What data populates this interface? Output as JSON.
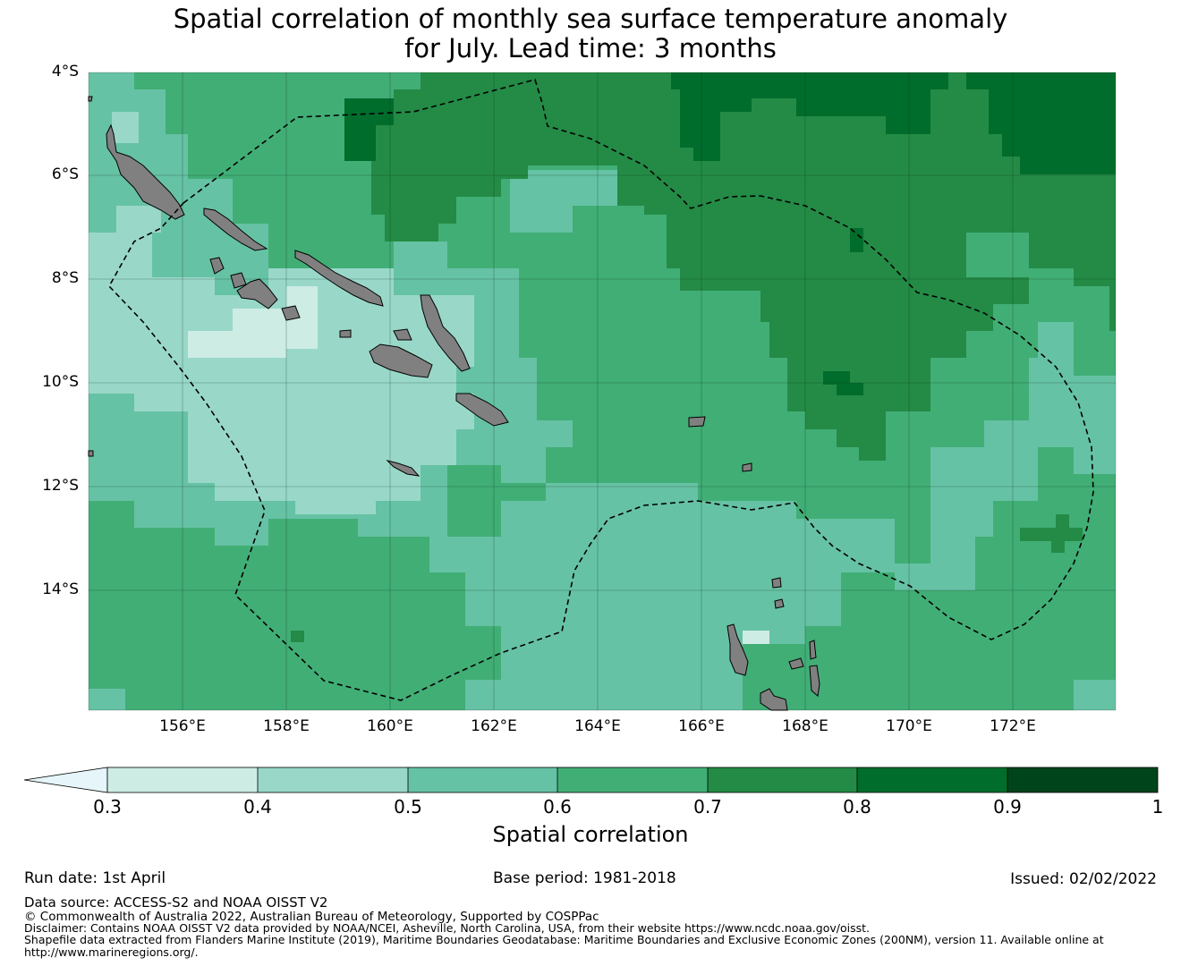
{
  "title_line1": "Spatial correlation of monthly sea surface temperature anomaly",
  "title_line2": "for July. Lead time: 3 months",
  "map": {
    "lon_range": [
      154.2,
      174.0
    ],
    "lat_range": [
      -4.0,
      -16.3
    ],
    "lat_ticks": [
      "4°S",
      "6°S",
      "8°S",
      "10°S",
      "12°S",
      "14°S"
    ],
    "lon_ticks": [
      "156°E",
      "158°E",
      "160°E",
      "162°E",
      "164°E",
      "166°E",
      "168°E",
      "170°E",
      "172°E"
    ],
    "land_color": "#808080",
    "eez_boundary_style": "dashed black"
  },
  "colorbar": {
    "title": "Spatial correlation",
    "ticks": [
      "0.3",
      "0.4",
      "0.5",
      "0.6",
      "0.7",
      "0.8",
      "0.9",
      "1"
    ],
    "colors": [
      "#cdece4",
      "#99d8c9",
      "#66c2a4",
      "#41ae76",
      "#238b45",
      "#006d2c",
      "#00441b"
    ],
    "under_color": "#e5f5f9"
  },
  "footer": {
    "run_date": "Run date: 1st April",
    "base_period": "Base period: 1981-2018",
    "issued": "Issued: 02/02/2022",
    "data_source": "Data source: ACCESS-S2 and NOAA OISST V2",
    "copyright": "© Commonwealth of Australia 2022, Australian Bureau of Meteorology, Supported by COSPPac",
    "disclaimer": "Disclaimer: Contains NOAA OISST V2 data provided by NOAA/NCEI, Asheville, North Carolina, USA, from their website https://www.ncdc.noaa.gov/oisst.",
    "shapefile_1": "Shapefile data extracted from Flanders Marine Institute (2019), Maritime Boundaries Geodatabase: Maritime Boundaries and Exclusive Economic Zones (200NM), version 11. Available online at",
    "shapefile_2": "http://www.marineregions.org/."
  }
}
